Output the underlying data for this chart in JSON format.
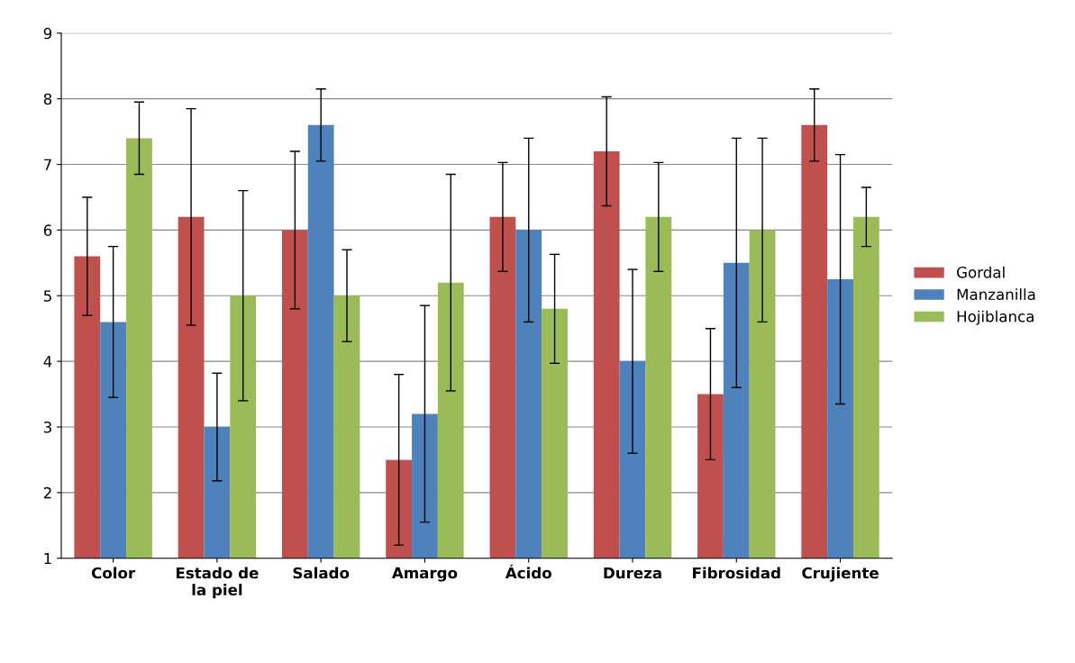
{
  "chart_data": {
    "type": "bar",
    "categories": [
      "Color",
      "Estado de\nla piel",
      "Salado",
      "Amargo",
      "Ácido",
      "Dureza",
      "Fibrosidad",
      "Crujiente"
    ],
    "series": [
      {
        "name": "Gordal",
        "color": "#c0504d",
        "values": [
          5.6,
          6.2,
          6.0,
          2.5,
          6.2,
          7.2,
          3.5,
          7.6
        ],
        "errors": [
          0.9,
          1.65,
          1.2,
          1.3,
          0.83,
          0.83,
          1.0,
          0.55
        ]
      },
      {
        "name": "Manzanilla",
        "color": "#4f81bd",
        "values": [
          4.6,
          3.0,
          7.6,
          3.2,
          6.0,
          4.0,
          5.5,
          5.25
        ],
        "errors": [
          1.15,
          0.82,
          0.55,
          1.65,
          1.4,
          1.4,
          1.9,
          1.9
        ]
      },
      {
        "name": "Hojiblanca",
        "color": "#9bbb59",
        "values": [
          7.4,
          5.0,
          5.0,
          5.2,
          4.8,
          6.2,
          6.0,
          6.2
        ],
        "errors": [
          0.55,
          1.6,
          0.7,
          1.65,
          0.83,
          0.83,
          1.4,
          0.45
        ]
      }
    ],
    "ylim": [
      1,
      9
    ],
    "yticks": [
      1,
      2,
      3,
      4,
      5,
      6,
      7,
      8,
      9
    ],
    "grid": "y",
    "legend": "right"
  }
}
